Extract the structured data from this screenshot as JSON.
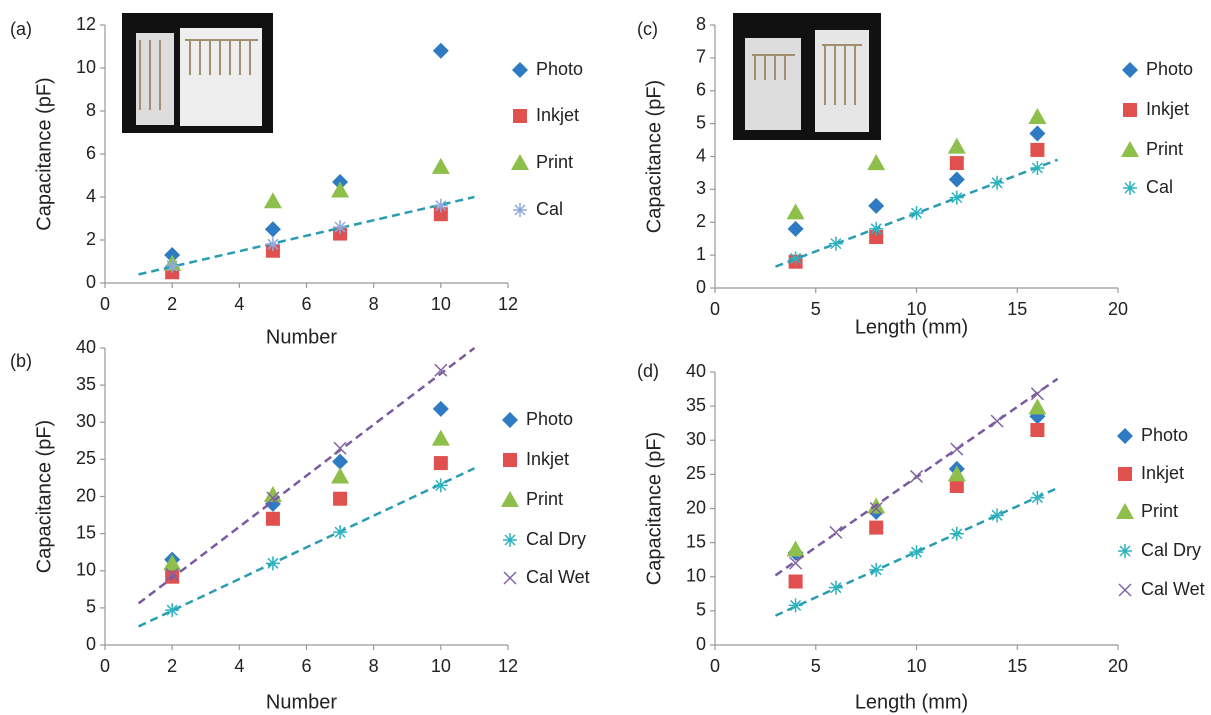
{
  "chart_data": [
    {
      "type": "scatter",
      "panel": "(a)",
      "xlabel": "Number",
      "ylabel": "Capacitance (pF)",
      "xlim": [
        0,
        12
      ],
      "xticks": [
        0,
        2,
        4,
        6,
        8,
        10,
        12
      ],
      "ylim": [
        0,
        12
      ],
      "yticks": [
        0,
        2,
        4,
        6,
        8,
        10,
        12
      ],
      "series": [
        {
          "name": "Photo",
          "color": "#2e7bc4",
          "marker": "diamond",
          "x": [
            2,
            5,
            7,
            10
          ],
          "values": [
            1.3,
            2.5,
            4.7,
            10.8
          ]
        },
        {
          "name": "Inkjet",
          "color": "#e0504e",
          "marker": "square",
          "x": [
            2,
            5,
            7,
            10
          ],
          "values": [
            0.5,
            1.5,
            2.3,
            3.2
          ]
        },
        {
          "name": "Print",
          "color": "#8dbf4a",
          "marker": "triangle",
          "x": [
            2,
            5,
            7,
            10
          ],
          "values": [
            0.9,
            3.8,
            4.3,
            5.4
          ]
        },
        {
          "name": "Cal",
          "color": "#8ea9dc",
          "marker": "asterisk",
          "x": [
            2,
            5,
            7,
            10
          ],
          "values": [
            0.8,
            1.8,
            2.6,
            3.6
          ],
          "trendline": {
            "color": "#2a9db0",
            "x": [
              1,
              11
            ],
            "values": [
              0.4,
              4.0
            ]
          }
        }
      ]
    },
    {
      "type": "scatter",
      "panel": "(b)",
      "xlabel": "Number",
      "ylabel": "Capacitance (pF)",
      "xlim": [
        0,
        12
      ],
      "xticks": [
        0,
        2,
        4,
        6,
        8,
        10,
        12
      ],
      "ylim": [
        0,
        40
      ],
      "yticks": [
        0,
        5,
        10,
        15,
        20,
        25,
        30,
        35,
        40
      ],
      "series": [
        {
          "name": "Photo",
          "color": "#2e7bc4",
          "marker": "diamond",
          "x": [
            2,
            5,
            7,
            10
          ],
          "values": [
            11.5,
            19,
            24.7,
            31.8
          ]
        },
        {
          "name": "Inkjet",
          "color": "#e0504e",
          "marker": "square",
          "x": [
            2,
            5,
            7,
            10
          ],
          "values": [
            9.2,
            17,
            19.7,
            24.5
          ]
        },
        {
          "name": "Print",
          "color": "#8dbf4a",
          "marker": "triangle",
          "x": [
            2,
            5,
            7,
            10
          ],
          "values": [
            11,
            20.2,
            22.7,
            27.8
          ]
        },
        {
          "name": "Cal Dry",
          "color": "#2bb3c0",
          "marker": "asterisk",
          "x": [
            2,
            5,
            7,
            10
          ],
          "values": [
            4.7,
            11,
            15.2,
            21.5
          ],
          "trendline": {
            "color": "#2a9db0",
            "x": [
              1,
              11
            ],
            "values": [
              2.5,
              23.8
            ]
          }
        },
        {
          "name": "Cal Wet",
          "color": "#8064a2",
          "marker": "cross",
          "x": [
            2,
            5,
            7,
            10
          ],
          "values": [
            9.5,
            19.8,
            26.5,
            37
          ],
          "trendline": {
            "color": "#7a5aa0",
            "x": [
              1,
              11
            ],
            "values": [
              5.6,
              40
            ]
          }
        }
      ]
    },
    {
      "type": "scatter",
      "panel": "(c)",
      "xlabel": "Length (mm)",
      "ylabel": "Capacitance (pF)",
      "xlim": [
        0,
        20
      ],
      "xticks": [
        0,
        5,
        10,
        15,
        20
      ],
      "ylim": [
        0,
        8
      ],
      "yticks": [
        0,
        1,
        2,
        3,
        4,
        5,
        6,
        7,
        8
      ],
      "series": [
        {
          "name": "Photo",
          "color": "#2e7bc4",
          "marker": "diamond",
          "x": [
            4,
            8,
            12,
            16
          ],
          "values": [
            1.8,
            2.5,
            3.3,
            4.7
          ]
        },
        {
          "name": "Inkjet",
          "color": "#e0504e",
          "marker": "square",
          "x": [
            4,
            8,
            12,
            16
          ],
          "values": [
            0.8,
            1.55,
            3.8,
            4.2
          ]
        },
        {
          "name": "Print",
          "color": "#8dbf4a",
          "marker": "triangle",
          "x": [
            4,
            8,
            12,
            16
          ],
          "values": [
            2.3,
            3.8,
            4.3,
            5.2
          ]
        },
        {
          "name": "Cal",
          "color": "#2bb3c0",
          "marker": "asterisk",
          "x": [
            4,
            6,
            8,
            10,
            12,
            14,
            16
          ],
          "values": [
            0.9,
            1.35,
            1.8,
            2.28,
            2.75,
            3.2,
            3.65
          ],
          "trendline": {
            "color": "#2a9db0",
            "x": [
              3,
              17
            ],
            "values": [
              0.65,
              3.9
            ]
          }
        }
      ]
    },
    {
      "type": "scatter",
      "panel": "(d)",
      "xlabel": "Length (mm)",
      "ylabel": "Capacitance (pF)",
      "xlim": [
        0,
        20
      ],
      "xticks": [
        0,
        5,
        10,
        15,
        20
      ],
      "ylim": [
        0,
        40
      ],
      "yticks": [
        0,
        5,
        10,
        15,
        20,
        25,
        30,
        35,
        40
      ],
      "series": [
        {
          "name": "Photo",
          "color": "#2e7bc4",
          "marker": "diamond",
          "x": [
            4,
            8,
            12,
            16
          ],
          "values": [
            13.5,
            19.5,
            25.8,
            33.5
          ]
        },
        {
          "name": "Inkjet",
          "color": "#e0504e",
          "marker": "square",
          "x": [
            4,
            8,
            12,
            16
          ],
          "values": [
            9.3,
            17.2,
            23.3,
            31.5
          ]
        },
        {
          "name": "Print",
          "color": "#8dbf4a",
          "marker": "triangle",
          "x": [
            4,
            8,
            12,
            16
          ],
          "values": [
            14,
            20.3,
            25,
            34.8
          ]
        },
        {
          "name": "Cal Dry",
          "color": "#2bb3c0",
          "marker": "asterisk",
          "x": [
            4,
            6,
            8,
            10,
            12,
            14,
            16
          ],
          "values": [
            5.8,
            8.4,
            11,
            13.6,
            16.3,
            19,
            21.6
          ],
          "trendline": {
            "color": "#2a9db0",
            "x": [
              3,
              17
            ],
            "values": [
              4.3,
              23
            ]
          }
        },
        {
          "name": "Cal Wet",
          "color": "#8064a2",
          "marker": "cross",
          "x": [
            4,
            6,
            8,
            10,
            12,
            14,
            16
          ],
          "values": [
            12,
            16.5,
            20,
            24.7,
            28.7,
            32.8,
            36.8
          ],
          "trendline": {
            "color": "#7a5aa0",
            "x": [
              3,
              17
            ],
            "values": [
              10.2,
              39
            ]
          }
        }
      ]
    }
  ]
}
